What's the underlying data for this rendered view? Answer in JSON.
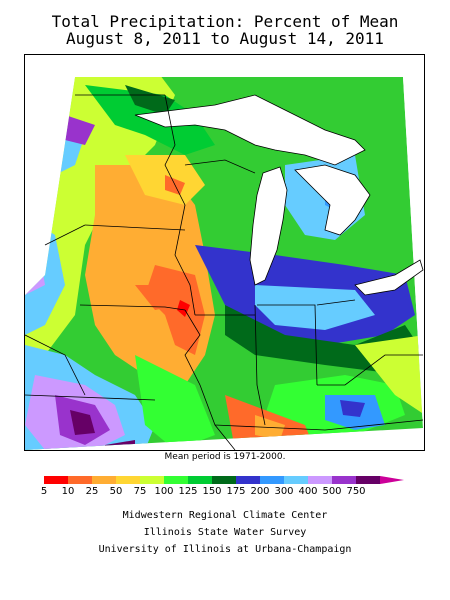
{
  "title": {
    "line1": "Total Precipitation: Percent of Mean",
    "line2": "August 8, 2011 to August 14, 2011"
  },
  "map_note": "Mean period is 1971-2000.",
  "legend": {
    "ticks": [
      "5",
      "10",
      "25",
      "50",
      "75",
      "100",
      "125",
      "150",
      "175",
      "200",
      "300",
      "400",
      "500",
      "750"
    ],
    "colors": [
      "#ff0000",
      "#ff6a2a",
      "#ffad33",
      "#ffd633",
      "#ccff33",
      "#33ff33",
      "#00cc33",
      "#006a1a",
      "#3333cc",
      "#3399ff",
      "#66ccff",
      "#cc99ff",
      "#9933cc",
      "#660066"
    ]
  },
  "credits": {
    "line1": "Midwestern Regional Climate Center",
    "line2": "Illinois State Water Survey",
    "line3": "University of Illinois at Urbana-Champaign"
  },
  "map": {
    "region": "Upper Midwest and Great Lakes",
    "palette": {
      "lake": "#ffffff",
      "outline": "#000000",
      "no_data": "#ffffff"
    }
  }
}
